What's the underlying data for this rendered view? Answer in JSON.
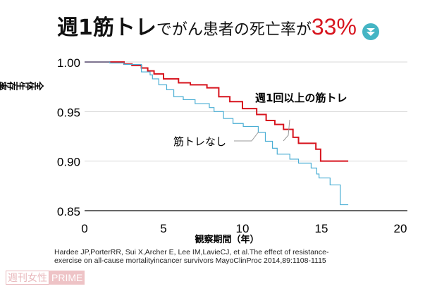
{
  "header": {
    "title_part1": "週1筋トレ",
    "title_part2": "でがん患者の死亡率が",
    "title_part3": "33%",
    "arrow_icon": "down-arrow-circle-icon",
    "accent": "#d7141e",
    "arrow_color": "#45b5c4"
  },
  "chart_data": {
    "type": "line",
    "step": true,
    "xlabel": "観察期間（年）",
    "ylabel": "全体生存率 （累積生存割合）",
    "xlim": [
      0,
      20
    ],
    "ylim": [
      0.85,
      1.0
    ],
    "xticks": [
      "0",
      "5",
      "10",
      "15",
      "20"
    ],
    "yticks": [
      "1.00",
      "0.95",
      "0.90",
      "0.85"
    ],
    "grid": "horizontal",
    "series": [
      {
        "name": "週1回以上の筋トレ",
        "color": "#d7141e",
        "points": [
          [
            0,
            1.0
          ],
          [
            2.5,
            0.998
          ],
          [
            3.0,
            0.9965
          ],
          [
            3.6,
            0.994
          ],
          [
            4.0,
            0.991
          ],
          [
            4.4,
            0.988
          ],
          [
            5.0,
            0.983
          ],
          [
            5.95,
            0.979
          ],
          [
            6.7,
            0.977
          ],
          [
            7.75,
            0.974
          ],
          [
            8.5,
            0.965
          ],
          [
            9.2,
            0.96
          ],
          [
            10.0,
            0.953
          ],
          [
            10.9,
            0.947
          ],
          [
            11.5,
            0.941
          ],
          [
            12.05,
            0.937
          ],
          [
            12.6,
            0.932
          ],
          [
            13.2,
            0.924
          ],
          [
            13.55,
            0.918
          ],
          [
            14.65,
            0.912
          ],
          [
            14.95,
            0.9
          ],
          [
            16.7,
            0.9
          ]
        ]
      },
      {
        "name": "筋トレなし",
        "color": "#4aaed4",
        "points": [
          [
            0,
            1.0
          ],
          [
            1.6,
            0.999
          ],
          [
            2.5,
            0.9975
          ],
          [
            3.6,
            0.99
          ],
          [
            4.15,
            0.987
          ],
          [
            4.3,
            0.983
          ],
          [
            4.7,
            0.977
          ],
          [
            5.2,
            0.972
          ],
          [
            5.65,
            0.965
          ],
          [
            6.25,
            0.962
          ],
          [
            7.0,
            0.958
          ],
          [
            7.9,
            0.954
          ],
          [
            8.2,
            0.95
          ],
          [
            8.8,
            0.943
          ],
          [
            9.4,
            0.938
          ],
          [
            10.05,
            0.935
          ],
          [
            11.0,
            0.929
          ],
          [
            11.45,
            0.92
          ],
          [
            11.9,
            0.913
          ],
          [
            12.2,
            0.907
          ],
          [
            13.0,
            0.902
          ],
          [
            13.55,
            0.898
          ],
          [
            14.35,
            0.893
          ],
          [
            14.7,
            0.887
          ],
          [
            14.85,
            0.883
          ],
          [
            15.55,
            0.876
          ],
          [
            16.2,
            0.856
          ],
          [
            16.7,
            0.856
          ]
        ]
      }
    ]
  },
  "citation": {
    "line1": "Hardee JP,PorterRR, Sui X,Archer E, Lee IM,LavieCJ, et al.The effect of resistance-",
    "line2": "exercise on all-cause mortalityincancer survivors MayoClinProc 2014,89:1108-1115"
  },
  "watermark": {
    "text1": "週刊女性",
    "text2": "PRIME"
  }
}
